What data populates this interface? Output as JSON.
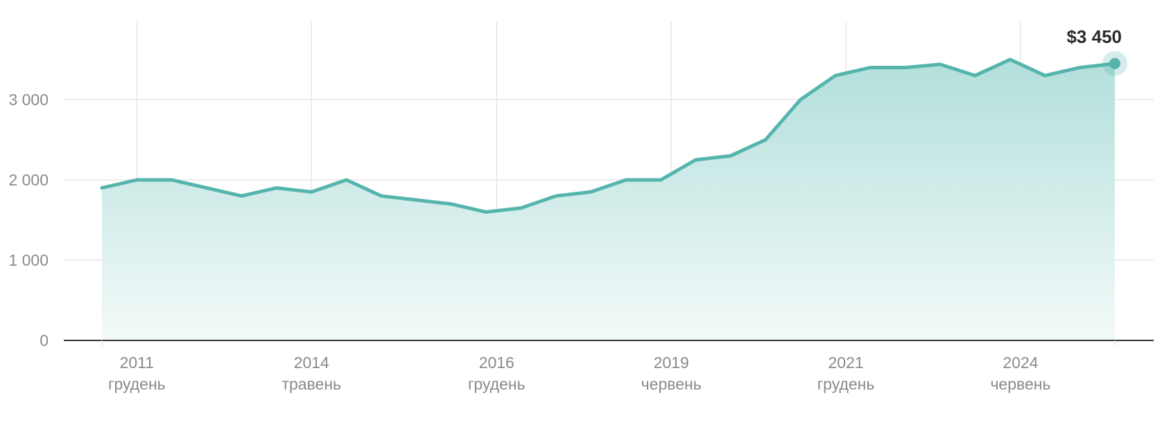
{
  "chart_data": {
    "type": "area",
    "title": "",
    "xlabel": "",
    "ylabel": "",
    "ylim": [
      0,
      3800
    ],
    "yticks": [
      {
        "value": 0,
        "label": "0"
      },
      {
        "value": 1000,
        "label": "1 000"
      },
      {
        "value": 2000,
        "label": "2 000"
      },
      {
        "value": 3000,
        "label": "3 000"
      }
    ],
    "xticks": [
      {
        "index": 1,
        "year": "2011",
        "month": "грудень"
      },
      {
        "index": 6,
        "year": "2014",
        "month": "травень"
      },
      {
        "index": 11.3,
        "year": "2016",
        "month": "грудень"
      },
      {
        "index": 16.3,
        "year": "2019",
        "month": "червень"
      },
      {
        "index": 21.3,
        "year": "2021",
        "month": "грудень"
      },
      {
        "index": 26.3,
        "year": "2024",
        "month": "червень"
      }
    ],
    "grid": true,
    "series": [
      {
        "values": [
          1900,
          2000,
          2000,
          1900,
          1800,
          1900,
          1850,
          2000,
          1800,
          1750,
          1700,
          1600,
          1650,
          1800,
          1850,
          2000,
          2000,
          2250,
          2300,
          2500,
          3000,
          3300,
          3400,
          3400,
          3440,
          3300,
          3500,
          3300,
          3400,
          3450
        ]
      }
    ],
    "last_value_label": "$3 450",
    "colors": {
      "line": "#55b4ac",
      "fill_top": "#b2dfdb",
      "fill_bottom": "#f3faf9",
      "grid": "#e6e6e6",
      "axis": "#333333"
    }
  }
}
